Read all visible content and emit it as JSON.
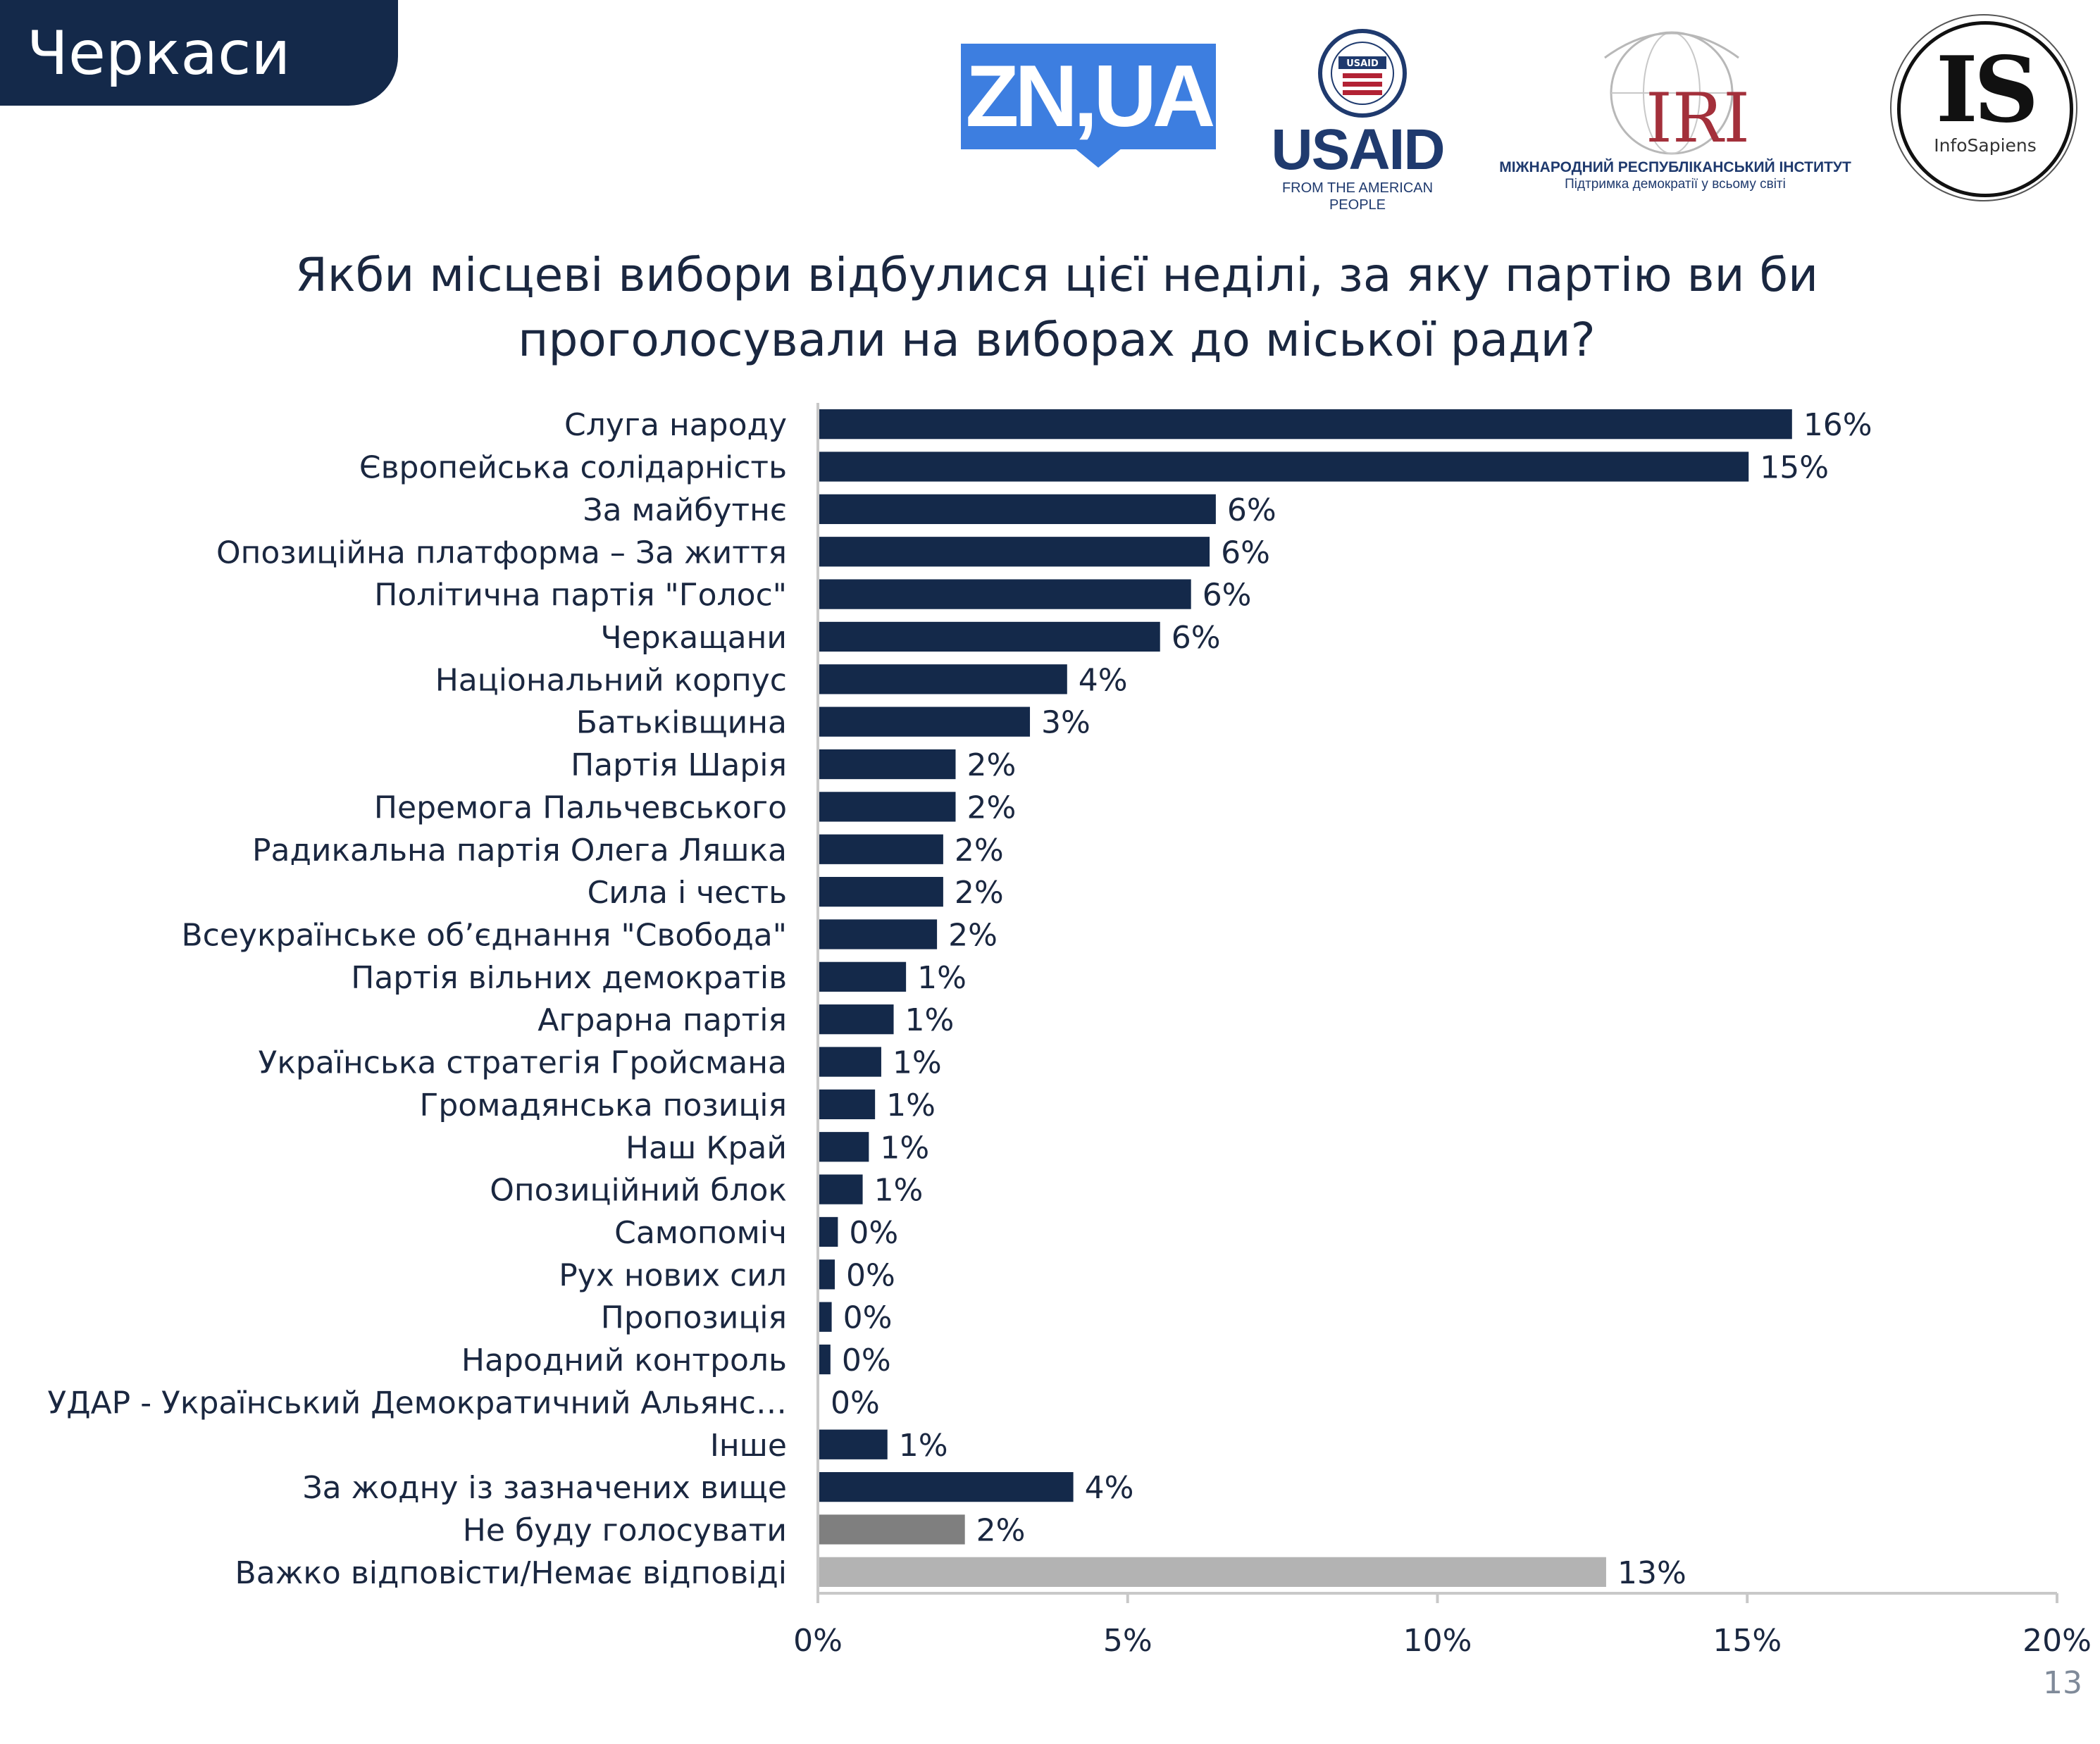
{
  "header": {
    "city": "Черкаси"
  },
  "logos": {
    "zn": "ZN,UA",
    "usaid": {
      "seal": "USAID",
      "word": "USAID",
      "tagline": "FROM THE AMERICAN PEOPLE"
    },
    "iri": {
      "mark": "IRI",
      "line1": "МІЖНАРОДНИЙ РЕСПУБЛІКАНСЬКИЙ ІНСТИТУТ",
      "line2": "Підтримка демократії у всьому світі"
    },
    "infosapiens": {
      "mark": "IS",
      "name": "InfoSapiens"
    }
  },
  "colors": {
    "header_bg": "#14294a",
    "bar_party": "#14294a",
    "bar_wont_vote": "#7f7f7f",
    "bar_hard_to_say": "#b3b3b3",
    "axis": "#c8c8c8",
    "text": "#1a2740"
  },
  "chart_data": {
    "type": "bar",
    "orientation": "horizontal",
    "title": "Якби місцеві вибори відбулися цієї неділі, за яку партію ви би проголосували на виборах до міської ради?",
    "title_lines": [
      "Якби місцеві вибори відбулися цієї неділі, за яку партію ви би",
      "проголосували на виборах до міської ради?"
    ],
    "xlim": [
      0,
      20
    ],
    "xticks": [
      "0%",
      "5%",
      "10%",
      "15%",
      "20%"
    ],
    "categories": [
      "Слуга народу",
      "Європейська солідарність",
      "За майбутнє",
      "Опозиційна платформа – За життя",
      "Політична партія \"Голос\"",
      "Черкащани",
      "Національний корпус",
      "Батьківщина",
      "Партія Шарія",
      "Перемога Пальчевського",
      "Радикальна партія Олега Ляшка",
      "Сила і честь",
      "Всеукраїнське об’єднання \"Свобода\"",
      "Партія вільних демократів",
      "Аграрна партія",
      "Українська стратегія Гройсмана",
      "Громадянська позиція",
      "Наш Край",
      "Опозиційний блок",
      "Самопоміч",
      "Рух нових сил",
      "Пропозиція",
      "Народний контроль",
      "УДАР - Український Демократичний Альянс…",
      "Інше",
      "За жодну із зазначених вище",
      "Не буду голосувати",
      "Важко відповісти/Немає відповіді"
    ],
    "values": [
      15.7,
      15.0,
      6.4,
      6.3,
      6.0,
      5.5,
      4.0,
      3.4,
      2.2,
      2.2,
      2.0,
      2.0,
      1.9,
      1.4,
      1.2,
      1.0,
      0.9,
      0.8,
      0.7,
      0.3,
      0.25,
      0.2,
      0.18,
      0.0,
      1.1,
      4.1,
      2.35,
      12.7
    ],
    "labels": [
      "16%",
      "15%",
      "6%",
      "6%",
      "6%",
      "6%",
      "4%",
      "3%",
      "2%",
      "2%",
      "2%",
      "2%",
      "2%",
      "1%",
      "1%",
      "1%",
      "1%",
      "1%",
      "1%",
      "0%",
      "0%",
      "0%",
      "0%",
      "0%",
      "1%",
      "4%",
      "2%",
      "13%"
    ],
    "bar_color_keys": [
      "bar_party",
      "bar_party",
      "bar_party",
      "bar_party",
      "bar_party",
      "bar_party",
      "bar_party",
      "bar_party",
      "bar_party",
      "bar_party",
      "bar_party",
      "bar_party",
      "bar_party",
      "bar_party",
      "bar_party",
      "bar_party",
      "bar_party",
      "bar_party",
      "bar_party",
      "bar_party",
      "bar_party",
      "bar_party",
      "bar_party",
      "bar_party",
      "bar_party",
      "bar_party",
      "bar_wont_vote",
      "bar_hard_to_say"
    ]
  },
  "footer": {
    "page_number": "13"
  }
}
